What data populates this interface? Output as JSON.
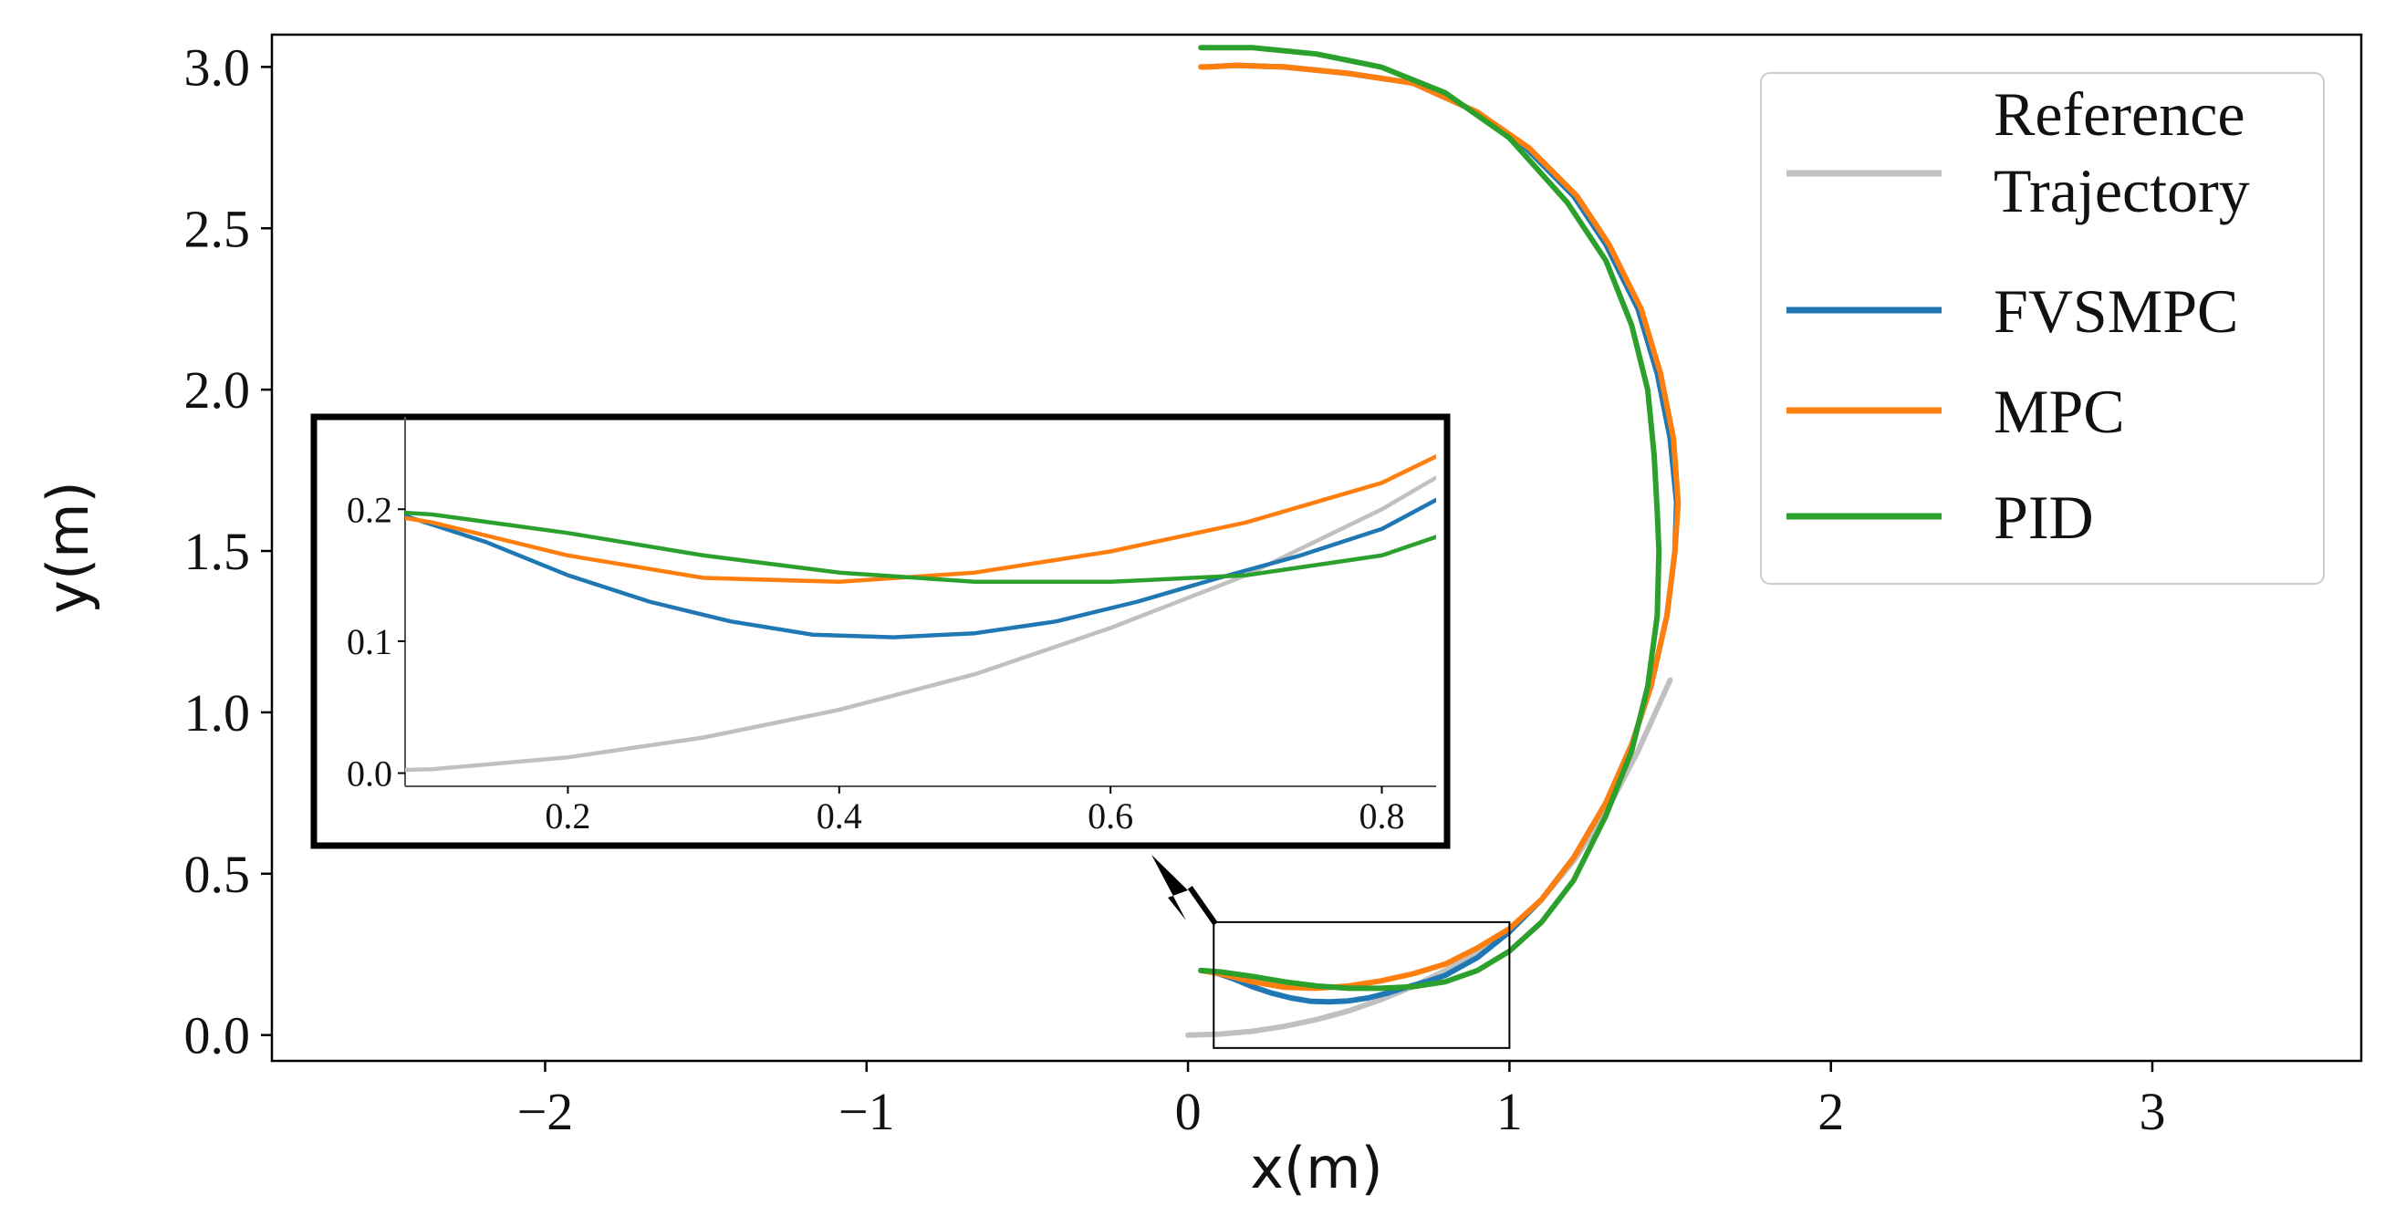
{
  "chart_data": {
    "type": "line",
    "xlabel": "x(m)",
    "ylabel": "y(m)",
    "xlim": [
      -2.85,
      3.65
    ],
    "ylim": [
      -0.08,
      3.1
    ],
    "xticks": [
      -2,
      -1,
      0,
      1,
      2,
      3
    ],
    "xtick_labels": [
      "−2",
      "−1",
      "0",
      "1",
      "2",
      "3"
    ],
    "yticks": [
      0.0,
      0.5,
      1.0,
      1.5,
      2.0,
      2.5,
      3.0
    ],
    "ytick_labels": [
      "0.0",
      "0.5",
      "1.0",
      "1.5",
      "2.0",
      "2.5",
      "3.0"
    ],
    "grid": false,
    "legend_position": "top-right",
    "series": [
      {
        "name": "Reference Trajectory",
        "color": "#c0c0c0",
        "x": [
          0.0,
          0.1,
          0.2,
          0.3,
          0.4,
          0.5,
          0.6,
          0.7,
          0.8,
          0.9,
          1.0,
          1.1,
          1.2,
          1.3,
          1.4,
          1.5
        ],
        "y": [
          0.0,
          0.003,
          0.012,
          0.027,
          0.048,
          0.075,
          0.11,
          0.15,
          0.2,
          0.26,
          0.33,
          0.42,
          0.54,
          0.69,
          0.88,
          1.1
        ]
      },
      {
        "name": "FVSMPC",
        "color": "#1f77b4",
        "x": [
          0.04,
          0.08,
          0.14,
          0.2,
          0.26,
          0.32,
          0.38,
          0.44,
          0.5,
          0.56,
          0.62,
          0.68,
          0.74,
          0.8,
          0.9,
          1.0,
          1.1,
          1.2,
          1.3,
          1.38,
          1.44,
          1.49,
          1.515,
          1.52,
          1.5,
          1.46,
          1.4,
          1.3,
          1.2,
          1.05,
          0.9,
          0.7,
          0.5,
          0.3,
          0.15,
          0.06,
          0.04
        ],
        "y": [
          0.2,
          0.195,
          0.175,
          0.15,
          0.13,
          0.115,
          0.105,
          0.103,
          0.106,
          0.115,
          0.13,
          0.148,
          0.165,
          0.185,
          0.24,
          0.32,
          0.42,
          0.55,
          0.72,
          0.9,
          1.08,
          1.3,
          1.5,
          1.65,
          1.85,
          2.05,
          2.25,
          2.45,
          2.6,
          2.75,
          2.86,
          2.95,
          2.98,
          3.0,
          3.005,
          3.0,
          3.0
        ]
      },
      {
        "name": "MPC",
        "color": "#ff7f0e",
        "x": [
          0.04,
          0.1,
          0.2,
          0.3,
          0.4,
          0.5,
          0.6,
          0.7,
          0.8,
          0.9,
          1.0,
          1.1,
          1.2,
          1.3,
          1.38,
          1.44,
          1.49,
          1.515,
          1.525,
          1.51,
          1.47,
          1.41,
          1.31,
          1.21,
          1.06,
          0.9,
          0.7,
          0.5,
          0.3,
          0.15,
          0.06,
          0.04
        ],
        "y": [
          0.2,
          0.19,
          0.165,
          0.148,
          0.145,
          0.152,
          0.168,
          0.19,
          0.22,
          0.27,
          0.33,
          0.42,
          0.55,
          0.72,
          0.9,
          1.08,
          1.3,
          1.5,
          1.65,
          1.85,
          2.05,
          2.25,
          2.45,
          2.6,
          2.75,
          2.86,
          2.95,
          2.98,
          3.0,
          3.005,
          3.0,
          3.0
        ]
      },
      {
        "name": "PID",
        "color": "#2ca02c",
        "x": [
          0.04,
          0.1,
          0.2,
          0.3,
          0.4,
          0.5,
          0.6,
          0.7,
          0.8,
          0.9,
          1.0,
          1.1,
          1.2,
          1.3,
          1.38,
          1.43,
          1.46,
          1.465,
          1.46,
          1.45,
          1.43,
          1.38,
          1.3,
          1.18,
          1.0,
          0.8,
          0.6,
          0.4,
          0.2,
          0.05,
          0.04
        ],
        "y": [
          0.2,
          0.196,
          0.182,
          0.165,
          0.152,
          0.145,
          0.145,
          0.15,
          0.165,
          0.2,
          0.26,
          0.35,
          0.48,
          0.68,
          0.88,
          1.08,
          1.3,
          1.5,
          1.62,
          1.8,
          2.0,
          2.2,
          2.4,
          2.58,
          2.78,
          2.92,
          3.0,
          3.04,
          3.06,
          3.06,
          3.06
        ]
      }
    ],
    "inset": {
      "source_box_x": [
        0.08,
        1.0
      ],
      "source_box_y": [
        -0.04,
        0.35
      ],
      "xlim": [
        0.08,
        0.84
      ],
      "ylim": [
        -0.01,
        0.27
      ],
      "xticks": [
        0.2,
        0.4,
        0.6,
        0.8
      ],
      "xtick_labels": [
        "0.2",
        "0.4",
        "0.6",
        "0.8"
      ],
      "yticks": [
        0.0,
        0.1,
        0.2
      ],
      "ytick_labels": [
        "0.0",
        "0.1",
        "0.2"
      ]
    },
    "legend": [
      {
        "label_lines": [
          "Reference",
          "Trajectory"
        ],
        "color": "#c0c0c0"
      },
      {
        "label_lines": [
          "FVSMPC"
        ],
        "color": "#1f77b4"
      },
      {
        "label_lines": [
          "MPC"
        ],
        "color": "#ff7f0e"
      },
      {
        "label_lines": [
          "PID"
        ],
        "color": "#2ca02c"
      }
    ]
  }
}
